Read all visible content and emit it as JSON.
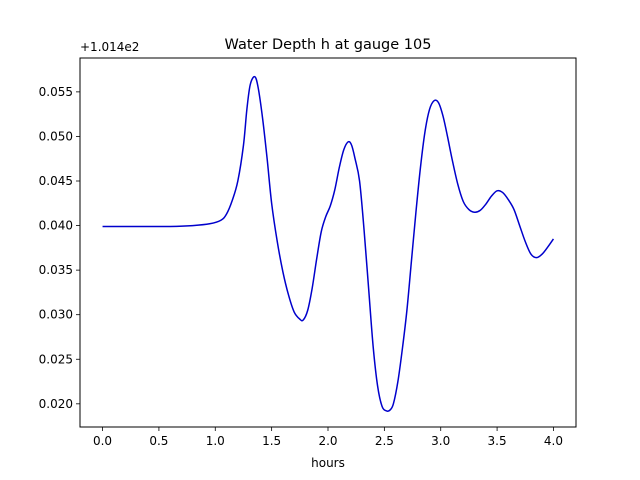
{
  "chart_data": {
    "type": "line",
    "title": "Water Depth h at gauge 105",
    "xlabel": "hours",
    "ylabel": "",
    "y_offset_label": "+1.014e2",
    "y_offset_value": 101.4,
    "xlim": [
      -0.2,
      4.2
    ],
    "ylim": [
      0.0174,
      0.0588
    ],
    "x_ticks": [
      0.0,
      0.5,
      1.0,
      1.5,
      2.0,
      2.5,
      3.0,
      3.5,
      4.0
    ],
    "x_tick_labels": [
      "0.0",
      "0.5",
      "1.0",
      "1.5",
      "2.0",
      "2.5",
      "3.0",
      "3.5",
      "4.0"
    ],
    "y_ticks": [
      0.02,
      0.025,
      0.03,
      0.035,
      0.04,
      0.045,
      0.05,
      0.055
    ],
    "y_tick_labels": [
      "0.020",
      "0.025",
      "0.030",
      "0.035",
      "0.040",
      "0.045",
      "0.050",
      "0.055"
    ],
    "grid": false,
    "series": [
      {
        "color": "#0000cc",
        "x": [
          0.0,
          0.2,
          0.4,
          0.6,
          0.8,
          0.95,
          1.05,
          1.1,
          1.15,
          1.2,
          1.25,
          1.28,
          1.31,
          1.35,
          1.38,
          1.42,
          1.46,
          1.5,
          1.55,
          1.6,
          1.65,
          1.7,
          1.75,
          1.78,
          1.82,
          1.86,
          1.9,
          1.94,
          1.98,
          2.02,
          2.06,
          2.1,
          2.14,
          2.18,
          2.21,
          2.24,
          2.28,
          2.32,
          2.36,
          2.4,
          2.44,
          2.48,
          2.52,
          2.55,
          2.58,
          2.62,
          2.66,
          2.7,
          2.74,
          2.78,
          2.82,
          2.86,
          2.9,
          2.94,
          2.98,
          3.02,
          3.06,
          3.1,
          3.15,
          3.2,
          3.25,
          3.3,
          3.35,
          3.4,
          3.45,
          3.5,
          3.55,
          3.6,
          3.65,
          3.7,
          3.75,
          3.8,
          3.85,
          3.9,
          3.95,
          4.0
        ],
        "y": [
          0.0399,
          0.0399,
          0.0399,
          0.0399,
          0.04,
          0.0402,
          0.0406,
          0.0413,
          0.0428,
          0.045,
          0.049,
          0.053,
          0.0558,
          0.0567,
          0.0555,
          0.052,
          0.0475,
          0.0425,
          0.0382,
          0.0348,
          0.0322,
          0.0303,
          0.0295,
          0.0294,
          0.0305,
          0.033,
          0.0363,
          0.0393,
          0.041,
          0.0422,
          0.044,
          0.0465,
          0.0485,
          0.0494,
          0.049,
          0.0475,
          0.045,
          0.0395,
          0.033,
          0.0265,
          0.022,
          0.0197,
          0.0192,
          0.0193,
          0.02,
          0.0225,
          0.0262,
          0.0305,
          0.036,
          0.0415,
          0.0465,
          0.0505,
          0.053,
          0.054,
          0.0538,
          0.0523,
          0.05,
          0.0475,
          0.0447,
          0.0427,
          0.0418,
          0.0415,
          0.0417,
          0.0424,
          0.0433,
          0.0439,
          0.0437,
          0.0429,
          0.0418,
          0.04,
          0.0382,
          0.0368,
          0.0364,
          0.0368,
          0.0376,
          0.0385
        ]
      }
    ]
  }
}
